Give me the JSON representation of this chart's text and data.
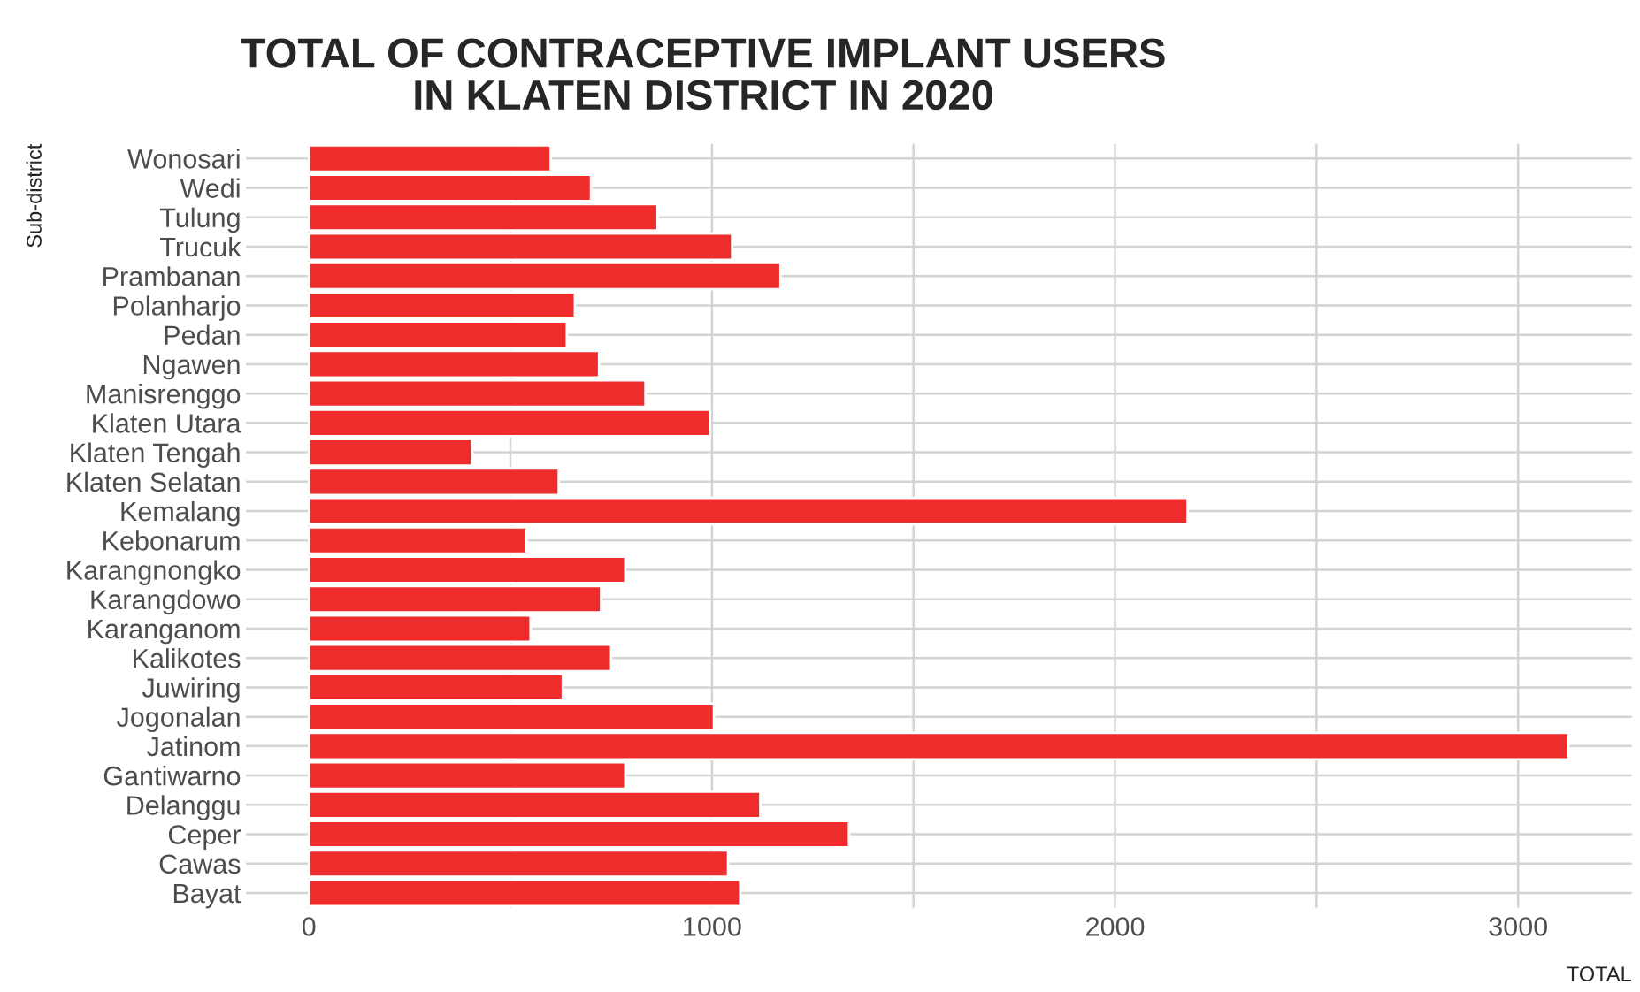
{
  "chart_data": {
    "type": "bar",
    "orientation": "horizontal",
    "title": "TOTAL OF CONTRACEPTIVE IMPLANT USERS\nIN KLATEN DISTRICT IN 2020",
    "xlabel": "TOTAL",
    "ylabel": "Sub-district",
    "categories": [
      "Wonosari",
      "Wedi",
      "Tulung",
      "Trucuk",
      "Prambanan",
      "Polanharjo",
      "Pedan",
      "Ngawen",
      "Manisrenggo",
      "Klaten Utara",
      "Klaten Tengah",
      "Klaten Selatan",
      "Kemalang",
      "Kebonarum",
      "Karangnongko",
      "Karangdowo",
      "Karanganom",
      "Kalikotes",
      "Juwiring",
      "Jogonalan",
      "Jatinom",
      "Gantiwarno",
      "Delanggu",
      "Ceper",
      "Cawas",
      "Bayat"
    ],
    "values": [
      600,
      700,
      865,
      1050,
      1170,
      660,
      640,
      720,
      835,
      995,
      405,
      620,
      2180,
      540,
      785,
      725,
      550,
      750,
      630,
      1005,
      3125,
      785,
      1120,
      1340,
      1040,
      1070
    ],
    "color": "#ee2c2c",
    "xlim": [
      -156,
      3282
    ],
    "xticks": [
      0,
      {
        "value": 500,
        "label": null
      },
      1000,
      {
        "value": 1500,
        "label": null
      },
      2000,
      {
        "value": 2500,
        "label": null
      },
      3000
    ],
    "grid": true
  }
}
